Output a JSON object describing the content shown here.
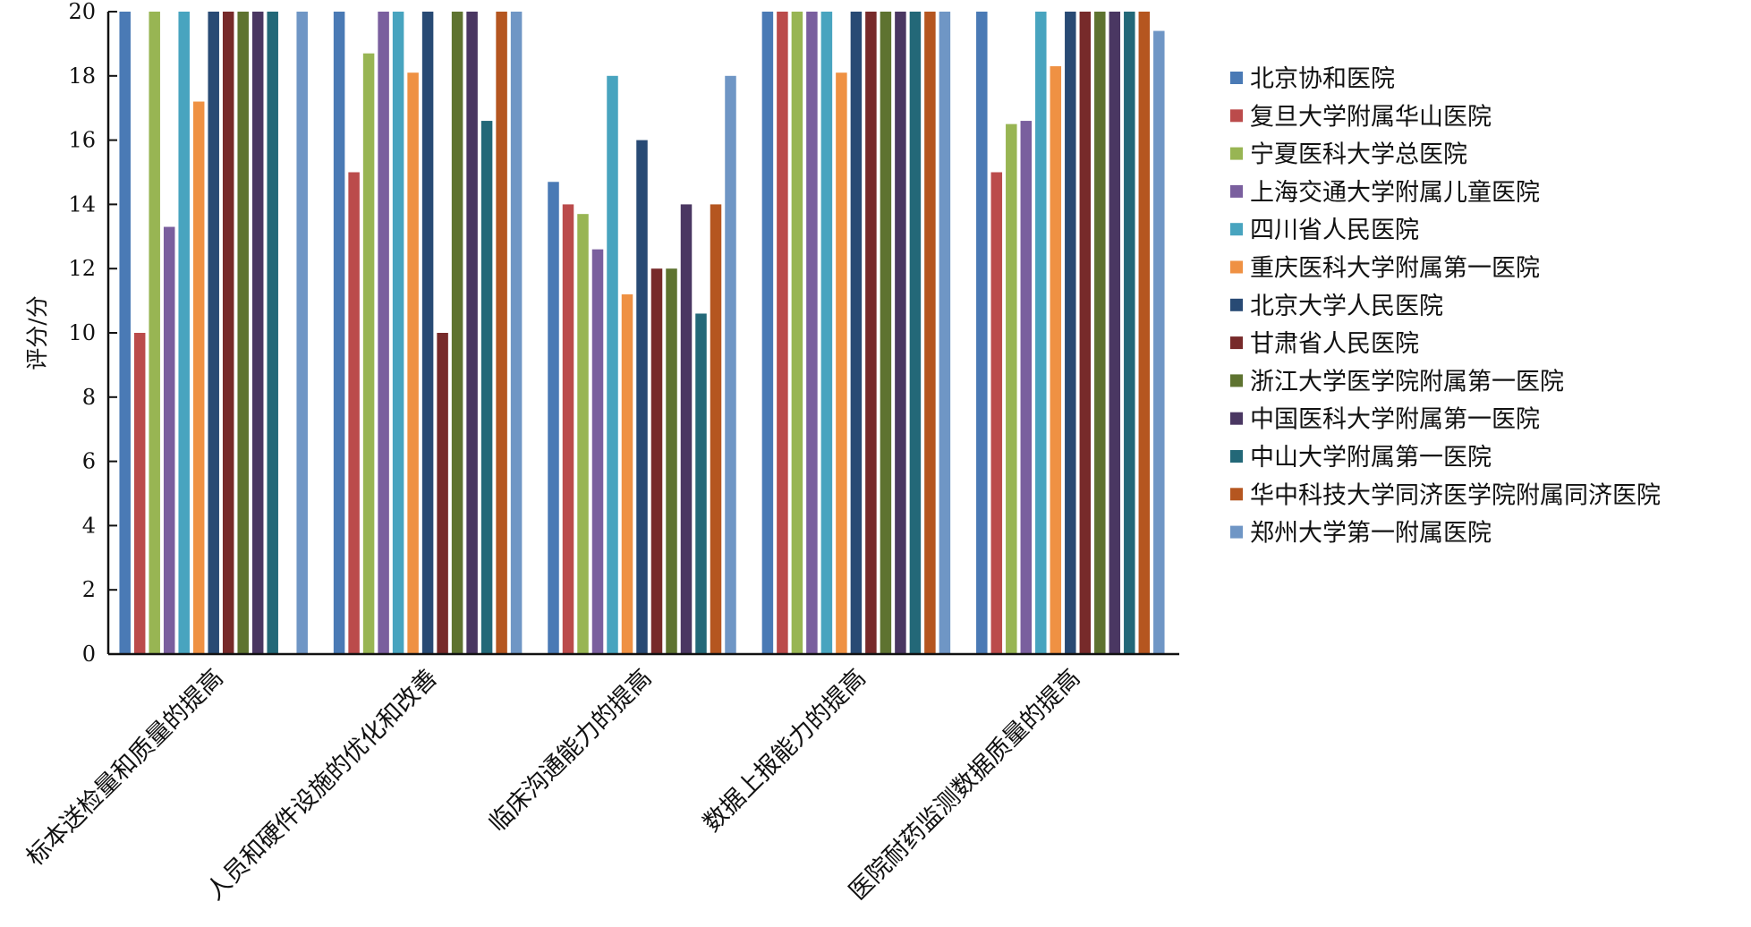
{
  "chart_data": {
    "type": "bar",
    "title": "",
    "xlabel": "",
    "ylabel": "评分/分",
    "ylim": [
      0,
      20
    ],
    "yticks": [
      0,
      2,
      4,
      6,
      8,
      10,
      12,
      14,
      16,
      18,
      20
    ],
    "grid": false,
    "legend_position": "right",
    "categories": [
      "标本送检量和质量的提高",
      "人员和硬件设施的优化和改善",
      "临床沟通能力的提高",
      "数据上报能力的提高",
      "医院耐药监测数据质量的提高"
    ],
    "series": [
      {
        "name": "北京协和医院",
        "color": "#4a7ab5",
        "values": [
          20,
          20,
          14.7,
          20,
          20
        ]
      },
      {
        "name": "复旦大学附属华山医院",
        "color": "#bb4b4b",
        "values": [
          10,
          15,
          14,
          20,
          15
        ]
      },
      {
        "name": "宁夏医科大学总医院",
        "color": "#98b553",
        "values": [
          20,
          18.7,
          13.7,
          20,
          16.5
        ]
      },
      {
        "name": "上海交通大学附属儿童医院",
        "color": "#7a5f9e",
        "values": [
          13.3,
          20,
          12.6,
          20,
          16.6
        ]
      },
      {
        "name": "四川省人民医院",
        "color": "#48a4bf",
        "values": [
          20,
          20,
          18,
          20,
          20
        ]
      },
      {
        "name": "重庆医科大学附属第一医院",
        "color": "#ef9143",
        "values": [
          17.2,
          18.1,
          11.2,
          18.1,
          18.3
        ]
      },
      {
        "name": "北京大学人民医院",
        "color": "#284a74",
        "values": [
          20,
          20,
          16,
          20,
          20
        ]
      },
      {
        "name": "甘肃省人民医院",
        "color": "#772a2a",
        "values": [
          20,
          10,
          12,
          20,
          20
        ]
      },
      {
        "name": "浙江大学医学院附属第一医院",
        "color": "#5e7330",
        "values": [
          20,
          20,
          12,
          20,
          20
        ]
      },
      {
        "name": "中国医科大学附属第一医院",
        "color": "#4a3762",
        "values": [
          20,
          20,
          14,
          20,
          20
        ]
      },
      {
        "name": "中山大学附属第一医院",
        "color": "#236878",
        "values": [
          20,
          16.6,
          10.6,
          20,
          20
        ]
      },
      {
        "name": "华中科技大学同济医学院附属同济医院",
        "color": "#b55620",
        "values": [
          0,
          20,
          14,
          20,
          20
        ]
      },
      {
        "name": "郑州大学第一附属医院",
        "color": "#6f96c5",
        "values": [
          20,
          20,
          18,
          20,
          19.4
        ]
      }
    ]
  }
}
